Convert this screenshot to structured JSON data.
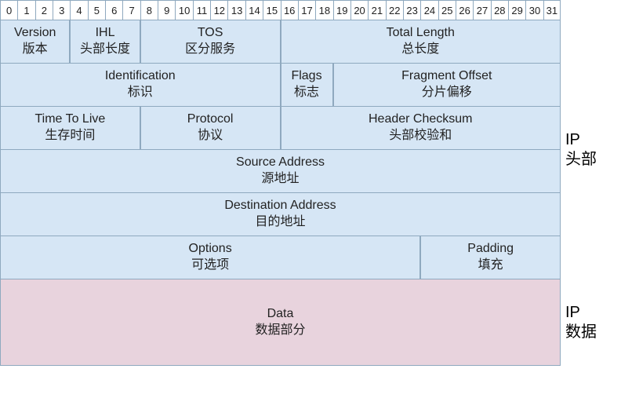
{
  "diagram": {
    "type": "table",
    "bit_count": 32,
    "colors": {
      "header_bg": "#d6e6f5",
      "data_bg": "#e8d3dd",
      "border": "#8fa9bf",
      "ruler_bg": "#ffffff",
      "text": "#222222"
    },
    "fonts": {
      "cell_en": 16,
      "cell_cn": 16,
      "ruler": 13,
      "side": 20
    },
    "bits": [
      "0",
      "1",
      "2",
      "3",
      "4",
      "5",
      "6",
      "7",
      "8",
      "9",
      "10",
      "11",
      "12",
      "13",
      "14",
      "15",
      "16",
      "17",
      "18",
      "19",
      "20",
      "21",
      "22",
      "23",
      "24",
      "25",
      "26",
      "27",
      "28",
      "29",
      "30",
      "31"
    ],
    "rows": [
      {
        "cells": [
          {
            "span": 4,
            "en": "Version",
            "cn": "版本"
          },
          {
            "span": 4,
            "en": "IHL",
            "cn": "头部长度"
          },
          {
            "span": 8,
            "en": "TOS",
            "cn": "区分服务"
          },
          {
            "span": 16,
            "en": "Total Length",
            "cn": "总长度"
          }
        ]
      },
      {
        "cells": [
          {
            "span": 16,
            "en": "Identification",
            "cn": "标识"
          },
          {
            "span": 3,
            "en": "Flags",
            "cn": "标志"
          },
          {
            "span": 13,
            "en": "Fragment Offset",
            "cn": "分片偏移"
          }
        ]
      },
      {
        "cells": [
          {
            "span": 8,
            "en": "Time To Live",
            "cn": "生存时间"
          },
          {
            "span": 8,
            "en": "Protocol",
            "cn": "协议"
          },
          {
            "span": 16,
            "en": "Header Checksum",
            "cn": "头部校验和"
          }
        ]
      },
      {
        "cells": [
          {
            "span": 32,
            "en": "Source Address",
            "cn": "源地址"
          }
        ]
      },
      {
        "cells": [
          {
            "span": 32,
            "en": "Destination Address",
            "cn": "目的地址"
          }
        ]
      },
      {
        "cells": [
          {
            "span": 24,
            "en": "Options",
            "cn": "可选项"
          },
          {
            "span": 8,
            "en": "Padding",
            "cn": "填充"
          }
        ]
      }
    ],
    "data_row": {
      "span": 32,
      "en": "Data",
      "cn": "数据部分"
    },
    "side_labels": {
      "header": {
        "line1": "IP",
        "line2": "头部"
      },
      "data": {
        "line1": "IP",
        "line2": "数据"
      }
    }
  }
}
